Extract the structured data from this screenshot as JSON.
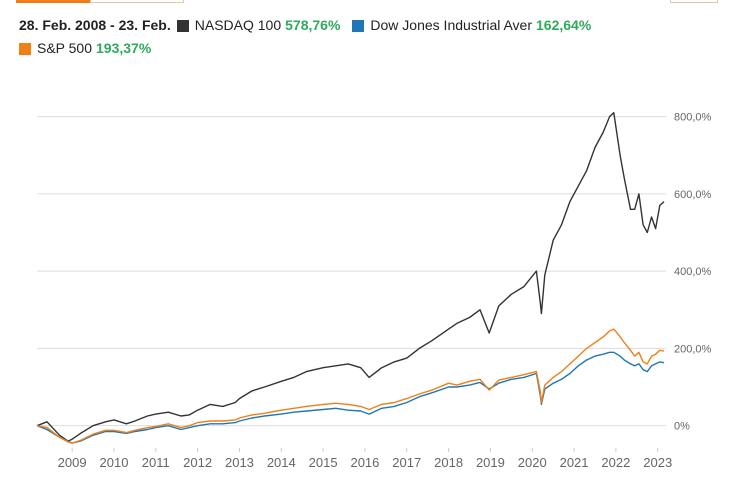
{
  "header": {
    "date_range": "28. Feb. 2008 - 23. Feb."
  },
  "legend": {
    "items": [
      {
        "name": "NASDAQ 100",
        "value": "578,76%",
        "color": "#333333"
      },
      {
        "name": "Dow Jones Industrial Aver",
        "value": "162,64%",
        "color": "#1f77b4"
      },
      {
        "name": "S&P 500",
        "value": "193,37%",
        "color": "#f07f16"
      }
    ]
  },
  "colors": {
    "value_positive": "#2eaa5b",
    "grid": "#dddddd",
    "tab_accent": "#ef7d1a"
  },
  "chart_data": {
    "type": "line",
    "x_unit": "year",
    "xlim": [
      2008.16,
      2023.15
    ],
    "ylim": [
      -50,
      830
    ],
    "y_ticks": [
      0,
      200,
      400,
      600,
      800
    ],
    "y_tick_labels": [
      "0%",
      "200,0%",
      "400,0%",
      "600,0%",
      "800,0%"
    ],
    "x_ticks": [
      2009,
      2010,
      2011,
      2012,
      2013,
      2014,
      2015,
      2016,
      2017,
      2018,
      2019,
      2020,
      2021,
      2022,
      2023
    ],
    "x_tick_labels": [
      "2009",
      "2010",
      "2011",
      "2012",
      "2013",
      "2014",
      "2015",
      "2016",
      "2017",
      "2018",
      "2019",
      "2020",
      "2021",
      "2022",
      "2023"
    ],
    "grid": true,
    "y_axis_position": "right",
    "series": [
      {
        "name": "NASDAQ 100",
        "color": "#333333",
        "x": [
          2008.16,
          2008.4,
          2008.7,
          2008.9,
          2009.0,
          2009.2,
          2009.5,
          2009.8,
          2010.0,
          2010.3,
          2010.5,
          2010.8,
          2011.0,
          2011.3,
          2011.6,
          2011.8,
          2012.0,
          2012.3,
          2012.6,
          2012.9,
          2013.0,
          2013.3,
          2013.6,
          2014.0,
          2014.3,
          2014.6,
          2015.0,
          2015.3,
          2015.6,
          2015.9,
          2016.1,
          2016.4,
          2016.7,
          2017.0,
          2017.3,
          2017.6,
          2018.0,
          2018.2,
          2018.5,
          2018.75,
          2018.97,
          2019.2,
          2019.5,
          2019.8,
          2020.1,
          2020.19,
          2020.22,
          2020.3,
          2020.5,
          2020.7,
          2020.9,
          2021.1,
          2021.3,
          2021.5,
          2021.7,
          2021.85,
          2021.95,
          2022.1,
          2022.2,
          2022.35,
          2022.45,
          2022.55,
          2022.65,
          2022.75,
          2022.85,
          2022.95,
          2023.05,
          2023.15
        ],
        "y": [
          0,
          10,
          -25,
          -40,
          -35,
          -20,
          0,
          10,
          15,
          5,
          12,
          25,
          30,
          35,
          25,
          28,
          40,
          55,
          50,
          60,
          70,
          90,
          100,
          115,
          125,
          140,
          150,
          155,
          160,
          150,
          125,
          150,
          165,
          175,
          200,
          220,
          250,
          265,
          280,
          300,
          240,
          310,
          340,
          360,
          400,
          320,
          290,
          390,
          480,
          520,
          580,
          620,
          660,
          720,
          760,
          800,
          810,
          700,
          640,
          560,
          560,
          600,
          520,
          500,
          540,
          510,
          570,
          580
        ]
      },
      {
        "name": "Dow Jones Industrial Aver",
        "color": "#1f77b4",
        "x": [
          2008.16,
          2008.4,
          2008.7,
          2008.9,
          2009.0,
          2009.2,
          2009.5,
          2009.8,
          2010.0,
          2010.3,
          2010.5,
          2010.8,
          2011.0,
          2011.3,
          2011.6,
          2011.8,
          2012.0,
          2012.3,
          2012.6,
          2012.9,
          2013.0,
          2013.3,
          2013.6,
          2014.0,
          2014.3,
          2014.6,
          2015.0,
          2015.3,
          2015.6,
          2015.9,
          2016.1,
          2016.4,
          2016.7,
          2017.0,
          2017.3,
          2017.6,
          2018.0,
          2018.2,
          2018.5,
          2018.75,
          2018.97,
          2019.2,
          2019.5,
          2019.8,
          2020.1,
          2020.19,
          2020.22,
          2020.3,
          2020.5,
          2020.7,
          2020.9,
          2021.1,
          2021.3,
          2021.5,
          2021.7,
          2021.85,
          2021.95,
          2022.1,
          2022.2,
          2022.35,
          2022.45,
          2022.55,
          2022.65,
          2022.75,
          2022.85,
          2022.95,
          2023.05,
          2023.15
        ],
        "y": [
          0,
          -10,
          -30,
          -40,
          -45,
          -40,
          -25,
          -15,
          -15,
          -20,
          -15,
          -10,
          -5,
          0,
          -10,
          -5,
          0,
          5,
          5,
          8,
          12,
          20,
          25,
          30,
          35,
          38,
          42,
          45,
          40,
          38,
          30,
          45,
          50,
          60,
          75,
          85,
          100,
          100,
          105,
          112,
          95,
          110,
          120,
          125,
          135,
          80,
          55,
          95,
          110,
          120,
          135,
          155,
          170,
          180,
          185,
          190,
          190,
          180,
          170,
          160,
          155,
          160,
          145,
          140,
          155,
          160,
          165,
          163
        ]
      },
      {
        "name": "S&P 500",
        "color": "#f07f16",
        "x": [
          2008.16,
          2008.4,
          2008.7,
          2008.9,
          2009.0,
          2009.2,
          2009.5,
          2009.8,
          2010.0,
          2010.3,
          2010.5,
          2010.8,
          2011.0,
          2011.3,
          2011.6,
          2011.8,
          2012.0,
          2012.3,
          2012.6,
          2012.9,
          2013.0,
          2013.3,
          2013.6,
          2014.0,
          2014.3,
          2014.6,
          2015.0,
          2015.3,
          2015.6,
          2015.9,
          2016.1,
          2016.4,
          2016.7,
          2017.0,
          2017.3,
          2017.6,
          2018.0,
          2018.2,
          2018.5,
          2018.75,
          2018.97,
          2019.2,
          2019.5,
          2019.8,
          2020.1,
          2020.19,
          2020.22,
          2020.3,
          2020.5,
          2020.7,
          2020.9,
          2021.1,
          2021.3,
          2021.5,
          2021.7,
          2021.85,
          2021.95,
          2022.1,
          2022.2,
          2022.35,
          2022.45,
          2022.55,
          2022.65,
          2022.75,
          2022.85,
          2022.95,
          2023.05,
          2023.15
        ],
        "y": [
          0,
          -5,
          -30,
          -42,
          -45,
          -38,
          -22,
          -12,
          -12,
          -18,
          -12,
          -5,
          -2,
          5,
          -5,
          0,
          8,
          12,
          12,
          15,
          20,
          28,
          32,
          40,
          45,
          50,
          55,
          58,
          55,
          50,
          42,
          55,
          60,
          70,
          82,
          92,
          110,
          105,
          115,
          120,
          92,
          118,
          125,
          132,
          140,
          90,
          60,
          105,
          125,
          140,
          160,
          180,
          200,
          215,
          230,
          245,
          250,
          230,
          215,
          195,
          180,
          190,
          165,
          160,
          180,
          185,
          195,
          193
        ]
      }
    ]
  }
}
